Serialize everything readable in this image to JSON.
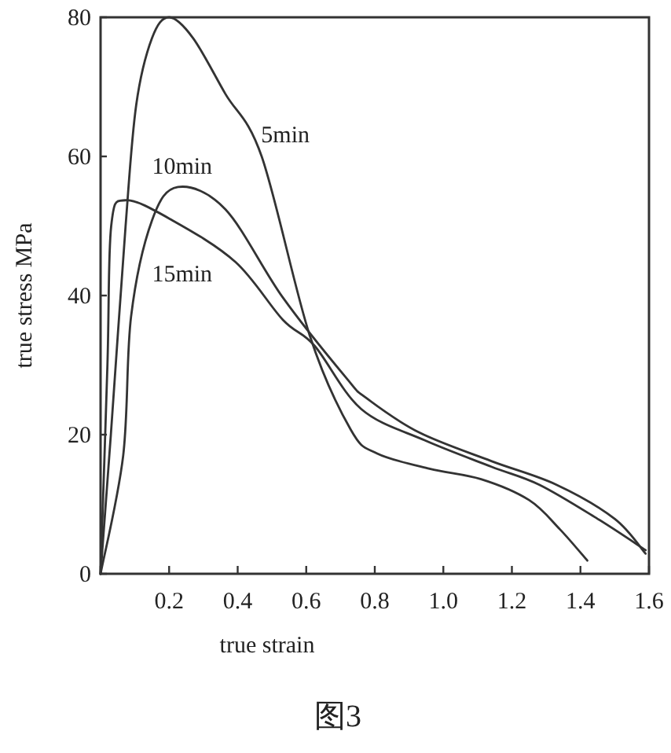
{
  "chart_data": {
    "type": "line",
    "xlabel": "true strain",
    "ylabel": "true stress MPa",
    "xlim": [
      0,
      1.6
    ],
    "ylim": [
      0,
      80
    ],
    "xticks": [
      {
        "value": 0,
        "label": null
      },
      0.2,
      0.4,
      0.6,
      0.8,
      {
        "value": 1.0,
        "label": "1.0"
      },
      1.2,
      1.4,
      1.6
    ],
    "yticks": [
      0,
      20,
      40,
      60,
      80
    ],
    "grid": false,
    "legend": false,
    "marker": "none",
    "line_style": "solid",
    "series": [
      {
        "name": "5min",
        "color": "#333333",
        "x": [
          0,
          0.03,
          0.073,
          0.104,
          0.15,
          0.2,
          0.27,
          0.364,
          0.47,
          0.61,
          0.73,
          0.807,
          0.96,
          1.11,
          1.25,
          1.34,
          1.42
        ],
        "values": [
          0,
          20,
          50,
          67.4,
          77,
          80,
          77,
          69,
          60,
          34.3,
          20.7,
          17.3,
          15.1,
          13.6,
          10.6,
          6.4,
          1.9
        ]
      },
      {
        "name": "10min",
        "color": "#333333",
        "x": [
          0,
          0.066,
          0.089,
          0.15,
          0.226,
          0.364,
          0.532,
          0.716,
          0.777,
          0.93,
          1.14,
          1.33,
          1.5,
          1.59
        ],
        "values": [
          0,
          17,
          37,
          50.8,
          55.6,
          52.4,
          39.7,
          28.2,
          25.2,
          20.3,
          16.2,
          12.8,
          7.9,
          2.9
        ]
      },
      {
        "name": "15min",
        "color": "#333333",
        "x": [
          0,
          0.02,
          0.031,
          0.073,
          0.21,
          0.394,
          0.532,
          0.624,
          0.76,
          0.945,
          1.14,
          1.28,
          1.45,
          1.59
        ],
        "values": [
          0,
          30,
          50,
          53.7,
          50.8,
          44.8,
          36.5,
          32.8,
          23.7,
          19.2,
          15.4,
          12.8,
          7.9,
          3.4
        ]
      }
    ],
    "annotations": [
      "图3"
    ]
  }
}
